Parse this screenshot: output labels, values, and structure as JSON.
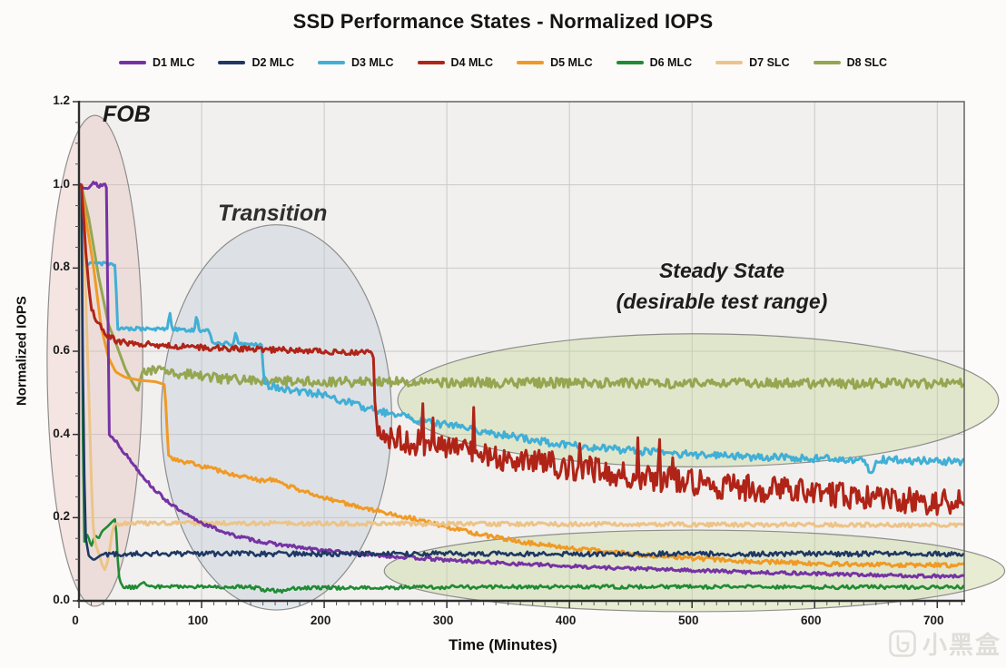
{
  "chart_data": {
    "type": "line",
    "title": "SSD Performance States - Normalized IOPS",
    "xlabel": "Time (Minutes)",
    "ylabel": "Normalized IOPS",
    "xlim": [
      0,
      722
    ],
    "ylim": [
      0,
      1.2
    ],
    "x_ticks": [
      0,
      100,
      200,
      300,
      400,
      500,
      600,
      700
    ],
    "y_ticks": [
      0,
      0.2,
      0.4,
      0.6,
      0.8,
      1.0,
      1.2
    ],
    "grid": true,
    "legend_position": "top-center",
    "plot_bg": "#f1f0ee",
    "grid_color": "#cac9c6",
    "annotations": [
      {
        "id": "fob",
        "text": "FOB"
      },
      {
        "id": "transition",
        "text": "Transition"
      },
      {
        "id": "steady-state",
        "text": "Steady State"
      },
      {
        "id": "steady-state-sub",
        "text": "(desirable test range)"
      }
    ],
    "regions": [
      {
        "name": "fob-ellipse",
        "cx": 13,
        "cy": 0.577,
        "rx": 39,
        "ry": 0.59,
        "fill": "rgba(226,178,172,0.30)",
        "stroke": "rgba(125,125,125,0.85)"
      },
      {
        "name": "transition-ellipse",
        "cx": 161,
        "cy": 0.441,
        "rx": 94,
        "ry": 0.463,
        "fill": "rgba(183,195,214,0.33)",
        "stroke": "rgba(125,125,125,0.85)"
      },
      {
        "name": "steady-state-upper-ellipse",
        "cx": 505,
        "cy": 0.482,
        "rx": 245,
        "ry": 0.16,
        "fill": "rgba(196,213,148,0.38)",
        "stroke": "rgba(125,125,125,0.85)"
      },
      {
        "name": "steady-state-lower-ellipse",
        "cx": 502,
        "cy": 0.072,
        "rx": 253,
        "ry": 0.098,
        "fill": "rgba(196,213,148,0.38)",
        "stroke": "rgba(125,125,125,0.85)"
      }
    ],
    "draw_order": [
      7,
      2,
      5,
      4,
      6,
      0,
      1,
      3
    ],
    "series": [
      {
        "name": "D1 MLC",
        "color": "#7633A4",
        "width": 3,
        "points": [
          [
            1,
            1.0
          ],
          [
            23,
            1.0
          ],
          [
            23.5,
            0.72
          ],
          [
            24,
            0.4
          ],
          [
            30,
            0.385
          ],
          [
            36,
            0.36
          ],
          [
            44,
            0.33
          ],
          [
            52,
            0.3
          ],
          [
            60,
            0.272
          ],
          [
            69,
            0.247
          ],
          [
            84,
            0.212
          ],
          [
            104,
            0.182
          ],
          [
            125,
            0.158
          ],
          [
            150,
            0.141
          ],
          [
            185,
            0.126
          ],
          [
            220,
            0.115
          ],
          [
            260,
            0.106
          ],
          [
            300,
            0.098
          ],
          [
            350,
            0.09
          ],
          [
            410,
            0.082
          ],
          [
            480,
            0.075
          ],
          [
            560,
            0.068
          ],
          [
            650,
            0.062
          ],
          [
            722,
            0.058
          ]
        ],
        "noise": [
          [
            0,
            23,
            0.009
          ],
          [
            24,
            722,
            0.004
          ]
        ]
      },
      {
        "name": "D2 MLC",
        "color": "#1F3864",
        "width": 2.6,
        "points": [
          [
            2,
            1.0
          ],
          [
            3,
            0.6
          ],
          [
            5,
            0.16
          ],
          [
            8,
            0.108
          ],
          [
            12,
            0.098
          ],
          [
            18,
            0.11
          ],
          [
            30,
            0.113
          ],
          [
            722,
            0.113
          ]
        ],
        "noise": [
          [
            18,
            722,
            0.006
          ]
        ]
      },
      {
        "name": "D3 MLC",
        "color": "#41AFD6",
        "width": 3,
        "points": [
          [
            2,
            1.0
          ],
          [
            2.5,
            0.9
          ],
          [
            3,
            0.81
          ],
          [
            30,
            0.81
          ],
          [
            31,
            0.655
          ],
          [
            72,
            0.653
          ],
          [
            74,
            0.695
          ],
          [
            76,
            0.653
          ],
          [
            94,
            0.65
          ],
          [
            96,
            0.688
          ],
          [
            98,
            0.65
          ],
          [
            107,
            0.648
          ],
          [
            108,
            0.62
          ],
          [
            126,
            0.618
          ],
          [
            128,
            0.645
          ],
          [
            130,
            0.617
          ],
          [
            149,
            0.615
          ],
          [
            151,
            0.52
          ],
          [
            170,
            0.508
          ],
          [
            200,
            0.496
          ],
          [
            230,
            0.467
          ],
          [
            255,
            0.448
          ],
          [
            280,
            0.433
          ],
          [
            310,
            0.418
          ],
          [
            340,
            0.402
          ],
          [
            370,
            0.386
          ],
          [
            400,
            0.374
          ],
          [
            430,
            0.366
          ],
          [
            460,
            0.359
          ],
          [
            490,
            0.353
          ],
          [
            520,
            0.349
          ],
          [
            550,
            0.346
          ],
          [
            580,
            0.344
          ],
          [
            610,
            0.342
          ],
          [
            640,
            0.34
          ],
          [
            646,
            0.302
          ],
          [
            652,
            0.34
          ],
          [
            680,
            0.337
          ],
          [
            722,
            0.335
          ]
        ],
        "noise": [
          [
            3,
            149,
            0.004
          ],
          [
            151,
            722,
            0.009
          ]
        ]
      },
      {
        "name": "D4 MLC",
        "color": "#B02418",
        "width": 3,
        "points": [
          [
            2,
            1.0
          ],
          [
            6,
            0.82
          ],
          [
            10,
            0.7
          ],
          [
            16,
            0.664
          ],
          [
            22,
            0.64
          ],
          [
            30,
            0.625
          ],
          [
            40,
            0.62
          ],
          [
            55,
            0.618
          ],
          [
            70,
            0.613
          ],
          [
            90,
            0.61
          ],
          [
            120,
            0.607
          ],
          [
            150,
            0.604
          ],
          [
            190,
            0.601
          ],
          [
            240,
            0.597
          ],
          [
            242,
            0.42
          ],
          [
            246,
            0.4
          ],
          [
            260,
            0.39
          ],
          [
            285,
            0.373
          ],
          [
            310,
            0.36
          ],
          [
            340,
            0.347
          ],
          [
            370,
            0.334
          ],
          [
            400,
            0.322
          ],
          [
            430,
            0.312
          ],
          [
            460,
            0.3
          ],
          [
            490,
            0.288
          ],
          [
            520,
            0.278
          ],
          [
            550,
            0.27
          ],
          [
            580,
            0.263
          ],
          [
            610,
            0.256
          ],
          [
            640,
            0.25
          ],
          [
            670,
            0.244
          ],
          [
            700,
            0.238
          ],
          [
            722,
            0.235
          ]
        ],
        "noise": [
          [
            4,
            240,
            0.007
          ],
          [
            242,
            722,
            0.032
          ]
        ],
        "spikes": {
          "t0": 270,
          "t1": 520,
          "p": 0.05,
          "mag": 0.085
        }
      },
      {
        "name": "D5 MLC",
        "color": "#F09A25",
        "width": 3,
        "points": [
          [
            2,
            1.0
          ],
          [
            5,
            0.93
          ],
          [
            12,
            0.8
          ],
          [
            18,
            0.66
          ],
          [
            24,
            0.585
          ],
          [
            30,
            0.55
          ],
          [
            38,
            0.537
          ],
          [
            50,
            0.53
          ],
          [
            62,
            0.527
          ],
          [
            70,
            0.52
          ],
          [
            71.5,
            0.43
          ],
          [
            73,
            0.35
          ],
          [
            78,
            0.34
          ],
          [
            90,
            0.332
          ],
          [
            110,
            0.316
          ],
          [
            130,
            0.301
          ],
          [
            148,
            0.289
          ],
          [
            158,
            0.292
          ],
          [
            175,
            0.272
          ],
          [
            195,
            0.252
          ],
          [
            215,
            0.236
          ],
          [
            235,
            0.222
          ],
          [
            255,
            0.209
          ],
          [
            275,
            0.196
          ],
          [
            295,
            0.181
          ],
          [
            315,
            0.167
          ],
          [
            340,
            0.152
          ],
          [
            370,
            0.138
          ],
          [
            400,
            0.127
          ],
          [
            430,
            0.118
          ],
          [
            460,
            0.111
          ],
          [
            490,
            0.104
          ],
          [
            520,
            0.099
          ],
          [
            550,
            0.095
          ],
          [
            580,
            0.092
          ],
          [
            610,
            0.089
          ],
          [
            650,
            0.087
          ],
          [
            722,
            0.085
          ]
        ],
        "noise": [
          [
            76,
            722,
            0.005
          ]
        ]
      },
      {
        "name": "D6 MLC",
        "color": "#1F8B33",
        "width": 2.6,
        "points": [
          [
            2,
            1.0
          ],
          [
            3,
            0.45
          ],
          [
            4,
            0.14
          ],
          [
            7,
            0.16
          ],
          [
            10,
            0.13
          ],
          [
            13,
            0.158
          ],
          [
            16,
            0.15
          ],
          [
            19,
            0.168
          ],
          [
            23,
            0.178
          ],
          [
            27,
            0.19
          ],
          [
            30,
            0.198
          ],
          [
            31,
            0.12
          ],
          [
            33,
            0.05
          ],
          [
            36,
            0.033
          ],
          [
            48,
            0.033
          ],
          [
            53,
            0.042
          ],
          [
            58,
            0.034
          ],
          [
            140,
            0.034
          ],
          [
            152,
            0.026
          ],
          [
            166,
            0.023
          ],
          [
            176,
            0.031
          ],
          [
            380,
            0.034
          ],
          [
            722,
            0.033
          ]
        ],
        "noise": [
          [
            36,
            722,
            0.0045
          ]
        ]
      },
      {
        "name": "D7 SLC",
        "color": "#ECC489",
        "width": 3,
        "points": [
          [
            2,
            1.0
          ],
          [
            5,
            0.78
          ],
          [
            8,
            0.5
          ],
          [
            11,
            0.2
          ],
          [
            13,
            0.14
          ],
          [
            16,
            0.115
          ],
          [
            19,
            0.085
          ],
          [
            21,
            0.075
          ],
          [
            23,
            0.09
          ],
          [
            25,
            0.12
          ],
          [
            27,
            0.165
          ],
          [
            29,
            0.185
          ],
          [
            40,
            0.187
          ],
          [
            300,
            0.185
          ],
          [
            722,
            0.182
          ]
        ],
        "noise": [
          [
            32,
            722,
            0.005
          ]
        ]
      },
      {
        "name": "D8 SLC",
        "color": "#95A651",
        "width": 3,
        "points": [
          [
            2,
            1.0
          ],
          [
            4,
            0.97
          ],
          [
            8,
            0.92
          ],
          [
            16,
            0.78
          ],
          [
            24,
            0.665
          ],
          [
            30,
            0.62
          ],
          [
            38,
            0.556
          ],
          [
            44,
            0.523
          ],
          [
            48,
            0.503
          ],
          [
            51,
            0.545
          ],
          [
            53,
            0.558
          ],
          [
            60,
            0.553
          ],
          [
            75,
            0.549
          ],
          [
            95,
            0.543
          ],
          [
            120,
            0.533
          ],
          [
            150,
            0.529
          ],
          [
            200,
            0.527
          ],
          [
            300,
            0.525
          ],
          [
            500,
            0.523
          ],
          [
            722,
            0.522
          ]
        ],
        "noise": [
          [
            54,
            722,
            0.012
          ]
        ]
      }
    ]
  },
  "watermark": {
    "text": "小黑盒"
  }
}
